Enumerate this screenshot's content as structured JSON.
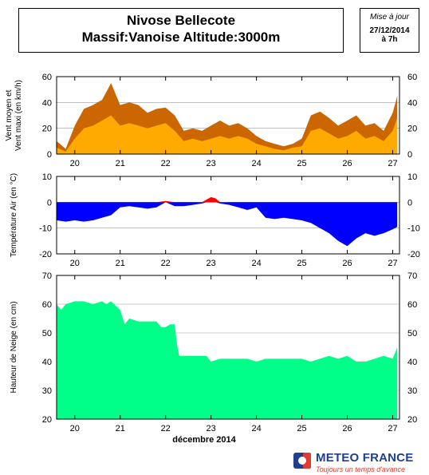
{
  "header": {
    "title_line1": "Nivose Bellecote",
    "title_line2": "Massif:Vanoise Altitude:3000m"
  },
  "update": {
    "label": "Mise à jour",
    "date": "27/12/2014",
    "time": "à 7h"
  },
  "logo": {
    "name": "METEO FRANCE",
    "tagline": "Toujours un temps d'avance"
  },
  "colors": {
    "wind_max": "#cc6600",
    "wind_mean": "#ffaa00",
    "temp_negative": "#0000ff",
    "temp_positive": "#ff0000",
    "snow": "#00ff88",
    "grid": "#999999"
  },
  "chart_data": [
    {
      "type": "area",
      "ylabel": "Vent moyen et Vent maxi (en km/h)",
      "ylim": [
        0,
        60
      ],
      "yticks": [
        0,
        20,
        40,
        60
      ],
      "x_ticks": [
        "20",
        "21",
        "22",
        "23",
        "24",
        "25",
        "26",
        "27"
      ],
      "series": [
        {
          "id": "wind_max",
          "x": [
            19.6,
            19.8,
            20.0,
            20.2,
            20.4,
            20.6,
            20.8,
            21.0,
            21.2,
            21.4,
            21.6,
            21.8,
            22.0,
            22.2,
            22.4,
            22.6,
            22.8,
            23.0,
            23.2,
            23.4,
            23.6,
            23.8,
            24.0,
            24.2,
            24.4,
            24.6,
            24.8,
            25.0,
            25.2,
            25.4,
            25.6,
            25.8,
            26.0,
            26.2,
            26.4,
            26.6,
            26.8,
            27.0,
            27.1
          ],
          "values": [
            10,
            4,
            22,
            35,
            38,
            42,
            55,
            38,
            40,
            38,
            32,
            35,
            36,
            30,
            18,
            20,
            18,
            22,
            26,
            22,
            24,
            20,
            14,
            10,
            8,
            6,
            8,
            12,
            30,
            33,
            28,
            22,
            26,
            30,
            22,
            24,
            18,
            32,
            45
          ]
        },
        {
          "id": "wind_mean",
          "x": [
            19.6,
            19.8,
            20.0,
            20.2,
            20.4,
            20.6,
            20.8,
            21.0,
            21.2,
            21.4,
            21.6,
            21.8,
            22.0,
            22.2,
            22.4,
            22.6,
            22.8,
            23.0,
            23.2,
            23.4,
            23.6,
            23.8,
            24.0,
            24.2,
            24.4,
            24.6,
            24.8,
            25.0,
            25.2,
            25.4,
            25.6,
            25.8,
            26.0,
            26.2,
            26.4,
            26.6,
            26.8,
            27.0,
            27.1
          ],
          "values": [
            5,
            2,
            12,
            20,
            22,
            26,
            30,
            22,
            24,
            22,
            20,
            22,
            24,
            18,
            10,
            12,
            10,
            12,
            14,
            12,
            14,
            12,
            8,
            6,
            4,
            3,
            5,
            6,
            18,
            20,
            16,
            12,
            14,
            18,
            12,
            14,
            10,
            18,
            28
          ]
        }
      ]
    },
    {
      "type": "area",
      "ylabel": "Température Air (en °C)",
      "ylim": [
        -20,
        10
      ],
      "yticks": [
        -20,
        -10,
        0,
        10
      ],
      "x_ticks": [
        "20",
        "21",
        "22",
        "23",
        "24",
        "25",
        "26",
        "27"
      ],
      "series": [
        {
          "id": "temperature",
          "x": [
            19.6,
            19.8,
            20.0,
            20.2,
            20.4,
            20.6,
            20.8,
            21.0,
            21.2,
            21.4,
            21.6,
            21.8,
            22.0,
            22.2,
            22.4,
            22.6,
            22.8,
            22.9,
            23.0,
            23.1,
            23.2,
            23.4,
            23.6,
            23.8,
            24.0,
            24.2,
            24.4,
            24.6,
            24.8,
            25.0,
            25.2,
            25.4,
            25.6,
            25.8,
            26.0,
            26.2,
            26.4,
            26.6,
            26.8,
            27.0,
            27.1
          ],
          "values": [
            -7,
            -7.5,
            -7,
            -7.5,
            -7,
            -6,
            -5,
            -2,
            -1.5,
            -2,
            -2.5,
            -2,
            0.5,
            -1.5,
            -1.5,
            -1,
            -0.5,
            1,
            2,
            1.5,
            -0.5,
            -1,
            -2,
            -3,
            -2,
            -6,
            -6.5,
            -6,
            -6.5,
            -7,
            -8,
            -10,
            -12,
            -15,
            -17,
            -14,
            -12,
            -13,
            -12,
            -10.5,
            -9.5
          ]
        }
      ]
    },
    {
      "type": "area",
      "ylabel": "Hauteur de Neige (en cm)",
      "xlabel": "décembre 2014",
      "ylim": [
        20,
        70
      ],
      "yticks": [
        20,
        30,
        40,
        50,
        60,
        70
      ],
      "x_ticks": [
        "20",
        "21",
        "22",
        "23",
        "24",
        "25",
        "26",
        "27"
      ],
      "series": [
        {
          "id": "snow_depth",
          "x": [
            19.6,
            19.7,
            19.8,
            20.0,
            20.2,
            20.4,
            20.6,
            20.7,
            20.8,
            21.0,
            21.1,
            21.2,
            21.4,
            21.6,
            21.8,
            21.9,
            22.0,
            22.1,
            22.2,
            22.25,
            22.3,
            22.6,
            22.8,
            22.9,
            23.0,
            23.2,
            23.4,
            23.6,
            23.8,
            24.0,
            24.2,
            24.4,
            24.6,
            24.8,
            25.0,
            25.2,
            25.4,
            25.6,
            25.8,
            26.0,
            26.2,
            26.4,
            26.6,
            26.8,
            27.0,
            27.1
          ],
          "values": [
            60,
            58,
            60,
            61,
            61,
            60,
            61,
            60,
            61,
            58,
            53,
            55,
            54,
            54,
            54,
            52,
            52,
            53,
            53,
            46,
            42,
            42,
            42,
            42,
            40,
            41,
            41,
            41,
            41,
            40,
            41,
            41,
            41,
            41,
            41,
            40,
            41,
            42,
            41,
            42,
            40,
            40,
            41,
            42,
            41,
            45
          ]
        }
      ]
    }
  ]
}
